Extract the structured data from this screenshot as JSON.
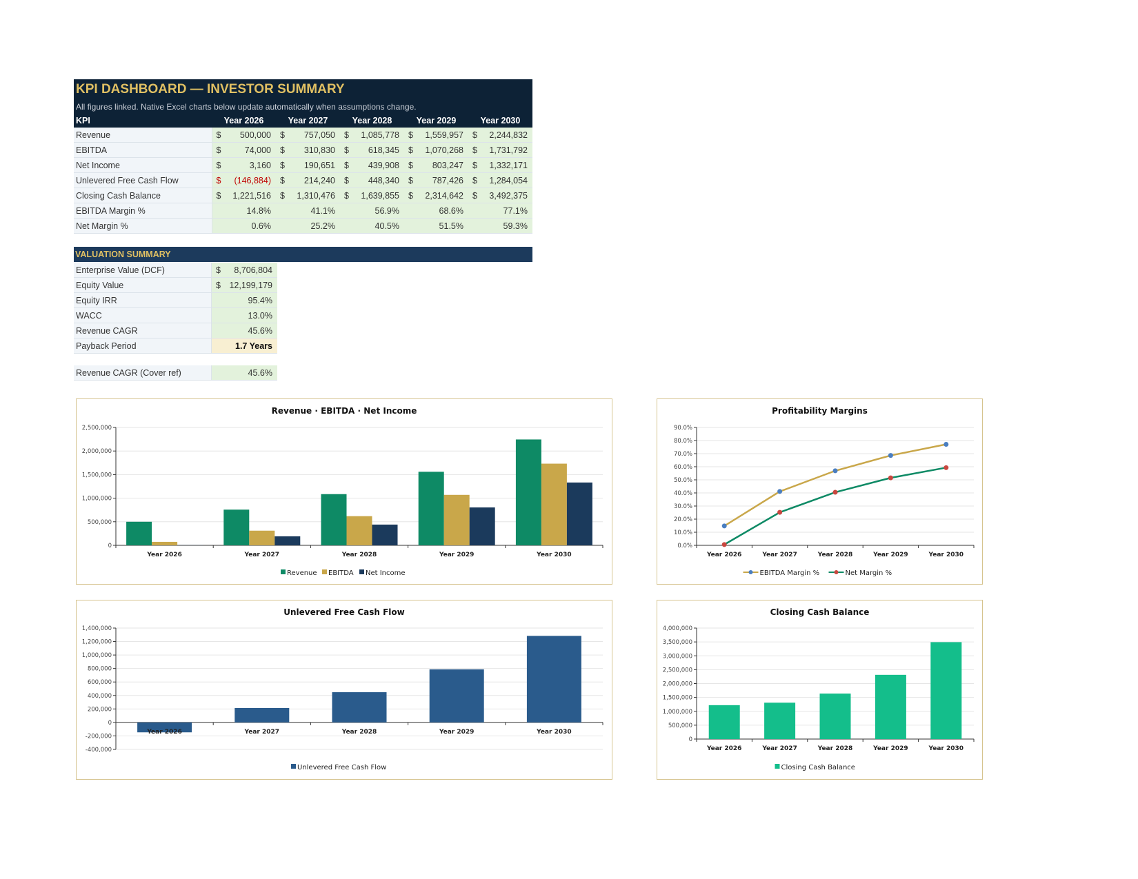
{
  "dashboard": {
    "title": "KPI DASHBOARD — INVESTOR SUMMARY",
    "subtitle": "All figures linked. Native Excel charts below update automatically when assumptions change.",
    "header": [
      "KPI",
      "Year 2026",
      "Year 2027",
      "Year 2028",
      "Year 2029",
      "Year 2030"
    ],
    "currency_rows": [
      {
        "label": "Revenue",
        "values": [
          "500,000",
          "757,050",
          "1,085,778",
          "1,559,957",
          "2,244,832"
        ],
        "negative": [
          false,
          false,
          false,
          false,
          false
        ]
      },
      {
        "label": "EBITDA",
        "values": [
          "74,000",
          "310,830",
          "618,345",
          "1,070,268",
          "1,731,792"
        ],
        "negative": [
          false,
          false,
          false,
          false,
          false
        ]
      },
      {
        "label": "Net Income",
        "values": [
          "3,160",
          "190,651",
          "439,908",
          "803,247",
          "1,332,171"
        ],
        "negative": [
          false,
          false,
          false,
          false,
          false
        ]
      },
      {
        "label": "Unlevered Free Cash Flow",
        "values": [
          "(146,884)",
          "214,240",
          "448,340",
          "787,426",
          "1,284,054"
        ],
        "negative": [
          true,
          false,
          false,
          false,
          false
        ]
      },
      {
        "label": "Closing Cash Balance",
        "values": [
          "1,221,516",
          "1,310,476",
          "1,639,855",
          "2,314,642",
          "3,492,375"
        ],
        "negative": [
          false,
          false,
          false,
          false,
          false
        ]
      }
    ],
    "percent_rows": [
      {
        "label": "EBITDA Margin %",
        "values": [
          "14.8%",
          "41.1%",
          "56.9%",
          "68.6%",
          "77.1%"
        ]
      },
      {
        "label": "Net Margin %",
        "values": [
          "0.6%",
          "25.2%",
          "40.5%",
          "51.5%",
          "59.3%"
        ]
      }
    ],
    "currency_symbol": "$"
  },
  "valuation": {
    "title": "VALUATION SUMMARY",
    "rows": [
      {
        "label": "Enterprise Value (DCF)",
        "value": "8,706,804",
        "currency": true
      },
      {
        "label": "Equity Value",
        "value": "12,199,179",
        "currency": true
      },
      {
        "label": "Equity IRR",
        "value": "95.4%",
        "currency": false
      },
      {
        "label": "WACC",
        "value": "13.0%",
        "currency": false
      },
      {
        "label": "Revenue CAGR",
        "value": "45.6%",
        "currency": false
      },
      {
        "label": "Payback Period",
        "value": "1.7 Years",
        "currency": false,
        "highlight": true
      }
    ],
    "cover_ref": {
      "label": "Revenue CAGR (Cover ref)",
      "value": "45.6%"
    }
  },
  "colors": {
    "revenue": "#0e8a65",
    "ebitda": "#c9a74a",
    "net_income": "#1b3a5c",
    "fcf": "#2a5b8c",
    "cash": "#14be8b",
    "ebitda_margin_line": "#c9a74a",
    "net_margin_line": "#0e8a65",
    "ebitda_marker": "#4a7ec0",
    "net_marker": "#c8473f"
  },
  "chart_data": [
    {
      "type": "bar",
      "title": "Revenue · EBITDA · Net Income",
      "categories": [
        "Year 2026",
        "Year 2027",
        "Year 2028",
        "Year 2029",
        "Year 2030"
      ],
      "series": [
        {
          "name": "Revenue",
          "values": [
            500000,
            757050,
            1085778,
            1559957,
            2244832
          ]
        },
        {
          "name": "EBITDA",
          "values": [
            74000,
            310830,
            618345,
            1070268,
            1731792
          ]
        },
        {
          "name": "Net Income",
          "values": [
            3160,
            190651,
            439908,
            803247,
            1332171
          ]
        }
      ],
      "ylim": [
        0,
        2500000
      ],
      "yticks": [
        "0",
        "500,000",
        "1,000,000",
        "1,500,000",
        "2,000,000",
        "2,500,000"
      ],
      "legend": "bottom",
      "grid": true
    },
    {
      "type": "line",
      "title": "Profitability Margins",
      "categories": [
        "Year 2026",
        "Year 2027",
        "Year 2028",
        "Year 2029",
        "Year 2030"
      ],
      "series": [
        {
          "name": "EBITDA Margin %",
          "values": [
            14.8,
            41.1,
            56.9,
            68.6,
            77.1
          ]
        },
        {
          "name": "Net Margin %",
          "values": [
            0.6,
            25.2,
            40.5,
            51.5,
            59.3
          ]
        }
      ],
      "ylim": [
        0,
        90
      ],
      "yticks": [
        "0.0%",
        "10.0%",
        "20.0%",
        "30.0%",
        "40.0%",
        "50.0%",
        "60.0%",
        "70.0%",
        "80.0%",
        "90.0%"
      ],
      "legend": "bottom",
      "grid": true
    },
    {
      "type": "bar",
      "title": "Unlevered Free Cash Flow",
      "categories": [
        "Year 2026",
        "Year 2027",
        "Year 2028",
        "Year 2029",
        "Year 2030"
      ],
      "series": [
        {
          "name": "Unlevered Free Cash Flow",
          "values": [
            -146884,
            214240,
            448340,
            787426,
            1284054
          ]
        }
      ],
      "ylim": [
        -400000,
        1400000
      ],
      "yticks": [
        "-400,000",
        "-200,000",
        "0",
        "200,000",
        "400,000",
        "600,000",
        "800,000",
        "1,000,000",
        "1,200,000",
        "1,400,000"
      ],
      "legend": "bottom",
      "grid": true
    },
    {
      "type": "bar",
      "title": "Closing Cash Balance",
      "categories": [
        "Year 2026",
        "Year 2027",
        "Year 2028",
        "Year 2029",
        "Year 2030"
      ],
      "series": [
        {
          "name": "Closing Cash Balance",
          "values": [
            1221516,
            1310476,
            1639855,
            2314642,
            3492375
          ]
        }
      ],
      "ylim": [
        0,
        4000000
      ],
      "yticks": [
        "0",
        "500,000",
        "1,000,000",
        "1,500,000",
        "2,000,000",
        "2,500,000",
        "3,000,000",
        "3,500,000",
        "4,000,000"
      ],
      "legend": "bottom",
      "grid": true
    }
  ]
}
